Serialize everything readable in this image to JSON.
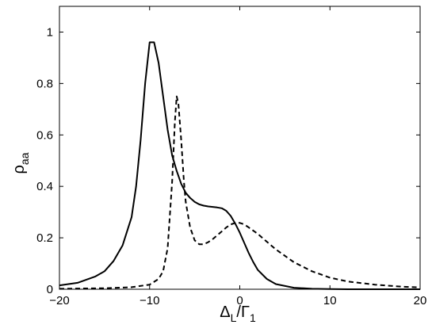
{
  "chart_data": {
    "type": "line",
    "xlabel": {
      "main": "Δ",
      "sub": "L",
      "mid": "/Γ",
      "sub2": "1"
    },
    "ylabel": {
      "main": "ρ",
      "sub": "aa"
    },
    "xlim": [
      -20,
      20
    ],
    "ylim": [
      0,
      1.1
    ],
    "xticks": [
      "−20",
      "−10",
      "0",
      "10",
      "20"
    ],
    "xtick_values": [
      -20,
      -10,
      0,
      10,
      20
    ],
    "yticks": [
      "0",
      "0.2",
      "0.4",
      "0.6",
      "0.8",
      "1"
    ],
    "ytick_values": [
      0,
      0.2,
      0.4,
      0.6,
      0.8,
      1.0
    ],
    "grid": false,
    "series": [
      {
        "style": "solid",
        "x": [
          -20,
          -18,
          -16,
          -15,
          -14,
          -13,
          -12,
          -11.5,
          -11,
          -10.5,
          -10,
          -9.5,
          -9,
          -8.5,
          -8,
          -7.5,
          -7,
          -6.5,
          -6,
          -5.5,
          -5,
          -4.5,
          -4,
          -3.5,
          -3,
          -2.5,
          -2,
          -1.5,
          -1,
          -0.5,
          0,
          0.5,
          1,
          1.5,
          2,
          3,
          4,
          6,
          8,
          10,
          12,
          15,
          20
        ],
        "y": [
          0.015,
          0.025,
          0.05,
          0.07,
          0.11,
          0.17,
          0.28,
          0.4,
          0.58,
          0.8,
          0.96,
          0.96,
          0.88,
          0.75,
          0.62,
          0.52,
          0.46,
          0.41,
          0.375,
          0.355,
          0.34,
          0.33,
          0.325,
          0.322,
          0.32,
          0.318,
          0.315,
          0.305,
          0.285,
          0.255,
          0.22,
          0.18,
          0.14,
          0.105,
          0.075,
          0.04,
          0.02,
          0.006,
          0.002,
          0.001,
          0,
          0,
          0
        ]
      },
      {
        "style": "dashed",
        "x": [
          -20,
          -15,
          -12,
          -10,
          -9,
          -8.5,
          -8,
          -7.5,
          -7.2,
          -7,
          -6.8,
          -6.5,
          -6.2,
          -6,
          -5.5,
          -5,
          -4.5,
          -4,
          -3.5,
          -3,
          -2.5,
          -2,
          -1.5,
          -1,
          -0.5,
          0,
          0.5,
          1,
          2,
          3,
          4,
          5,
          6,
          8,
          10,
          12,
          15,
          18,
          20
        ],
        "y": [
          0.002,
          0.004,
          0.008,
          0.018,
          0.04,
          0.07,
          0.16,
          0.42,
          0.65,
          0.75,
          0.72,
          0.58,
          0.42,
          0.34,
          0.24,
          0.19,
          0.175,
          0.175,
          0.183,
          0.195,
          0.21,
          0.225,
          0.24,
          0.252,
          0.258,
          0.258,
          0.252,
          0.24,
          0.215,
          0.185,
          0.155,
          0.13,
          0.105,
          0.07,
          0.045,
          0.03,
          0.018,
          0.01,
          0.007
        ]
      }
    ]
  }
}
